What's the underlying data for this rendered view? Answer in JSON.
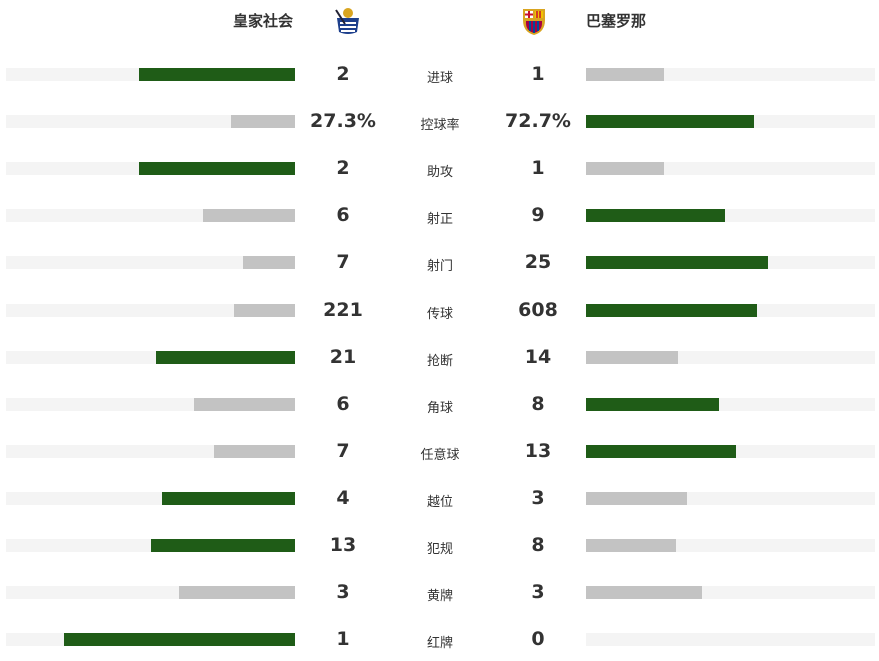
{
  "home": {
    "name": "皇家社会"
  },
  "away": {
    "name": "巴塞罗那"
  },
  "colors": {
    "win": "#1f5c17",
    "lose": "#c3c3c3",
    "track": "#f4f4f4"
  },
  "stats": [
    {
      "label": "进球",
      "home": "2",
      "away": "1",
      "home_fill": 0.54,
      "away_fill": 0.27
    },
    {
      "label": "控球率",
      "home": "27.3%",
      "away": "72.7%",
      "home_fill": 0.22,
      "away_fill": 0.58
    },
    {
      "label": "助攻",
      "home": "2",
      "away": "1",
      "home_fill": 0.54,
      "away_fill": 0.27
    },
    {
      "label": "射正",
      "home": "6",
      "away": "9",
      "home_fill": 0.32,
      "away_fill": 0.48
    },
    {
      "label": "射门",
      "home": "7",
      "away": "25",
      "home_fill": 0.18,
      "away_fill": 0.63
    },
    {
      "label": "传球",
      "home": "221",
      "away": "608",
      "home_fill": 0.21,
      "away_fill": 0.59
    },
    {
      "label": "抢断",
      "home": "21",
      "away": "14",
      "home_fill": 0.48,
      "away_fill": 0.32
    },
    {
      "label": "角球",
      "home": "6",
      "away": "8",
      "home_fill": 0.35,
      "away_fill": 0.46
    },
    {
      "label": "任意球",
      "home": "7",
      "away": "13",
      "home_fill": 0.28,
      "away_fill": 0.52
    },
    {
      "label": "越位",
      "home": "4",
      "away": "3",
      "home_fill": 0.46,
      "away_fill": 0.35
    },
    {
      "label": "犯规",
      "home": "13",
      "away": "8",
      "home_fill": 0.5,
      "away_fill": 0.31
    },
    {
      "label": "黄牌",
      "home": "3",
      "away": "3",
      "home_fill": 0.4,
      "away_fill": 0.4
    },
    {
      "label": "红牌",
      "home": "1",
      "away": "0",
      "home_fill": 0.8,
      "away_fill": 0
    }
  ]
}
